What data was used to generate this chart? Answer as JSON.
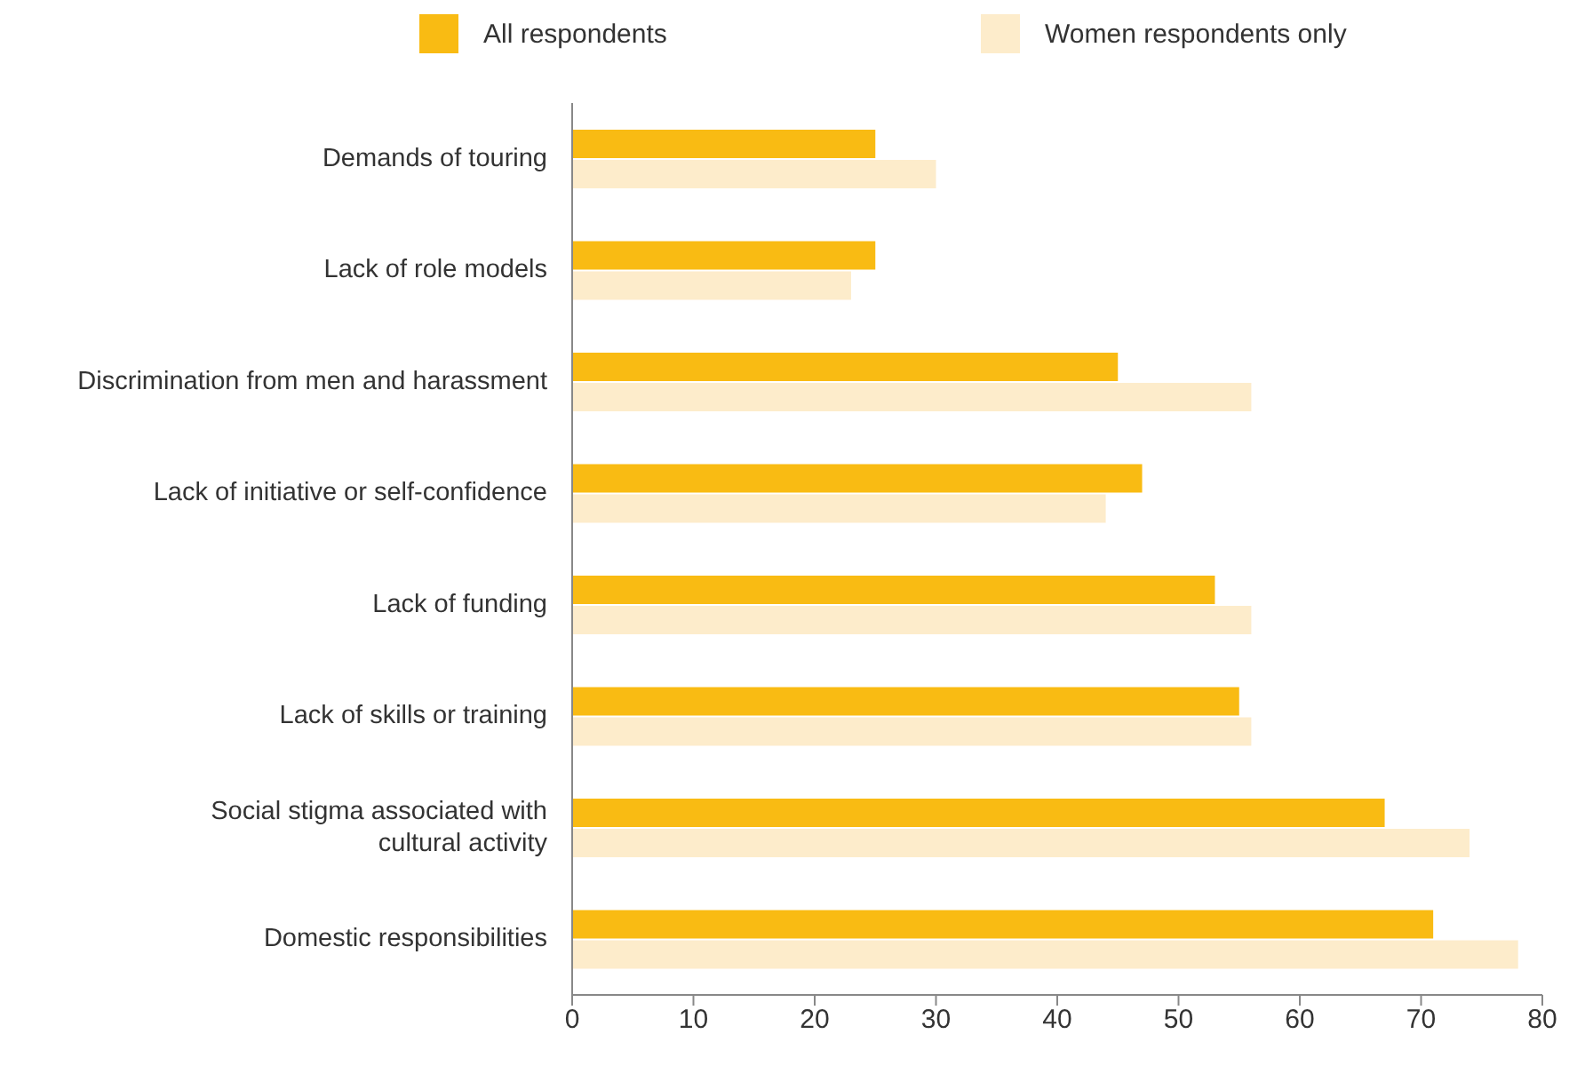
{
  "chart_data": {
    "type": "bar",
    "orientation": "horizontal",
    "categories": [
      "Demands of touring",
      "Lack of role models",
      "Discrimination from men and harassment",
      "Lack of initiative or self-confidence",
      "Lack of funding",
      "Lack of skills or training",
      "Social stigma associated with cultural activity",
      "Domestic responsibilities"
    ],
    "series": [
      {
        "name": "All respondents",
        "color": "#f9bb13",
        "values": [
          25,
          25,
          45,
          47,
          53,
          55,
          67,
          71
        ]
      },
      {
        "name": "Women respondents only",
        "color": "#fdeccb",
        "values": [
          30,
          23,
          56,
          44,
          56,
          56,
          74,
          78
        ]
      }
    ],
    "xlim": [
      0,
      80
    ],
    "xticks": [
      0,
      10,
      20,
      30,
      40,
      50,
      60,
      70,
      80
    ],
    "grid": false,
    "legend": "top"
  }
}
